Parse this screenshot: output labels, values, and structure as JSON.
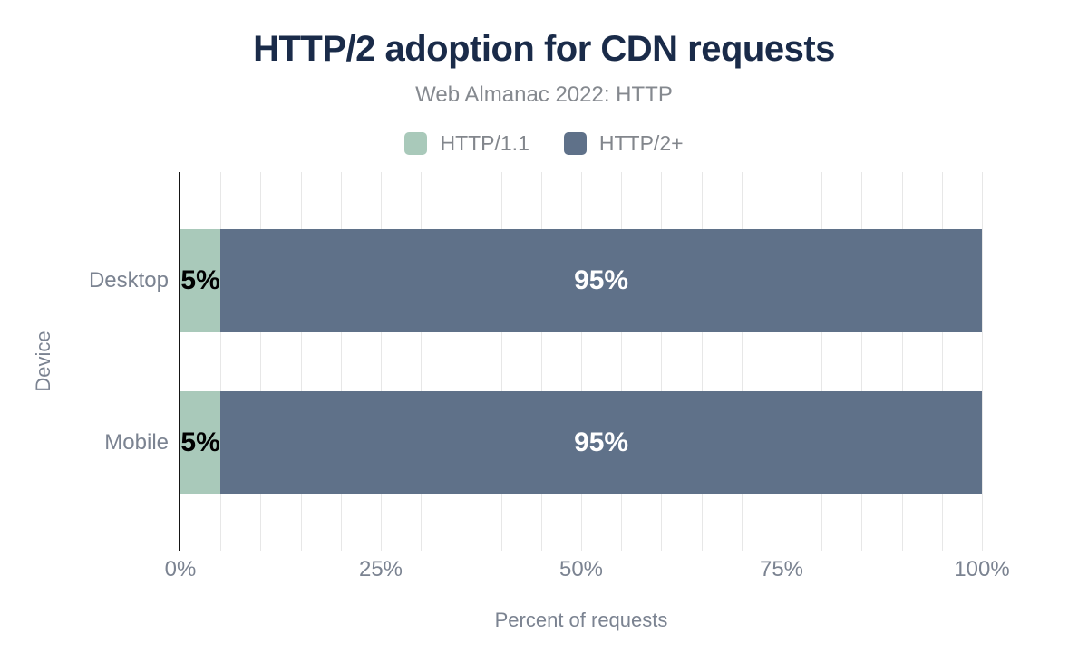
{
  "chart": {
    "title": "HTTP/2 adoption for CDN requests",
    "subtitle": "Web Almanac 2022: HTTP",
    "xlabel": "Percent of requests",
    "ylabel": "Device"
  },
  "legend": {
    "items": [
      {
        "label": "HTTP/1.1",
        "color": "#a9c9ba"
      },
      {
        "label": "HTTP/2+",
        "color": "#5f7189"
      }
    ]
  },
  "chart_data": {
    "type": "bar",
    "orientation": "horizontal",
    "stacked": true,
    "title": "HTTP/2 adoption for CDN requests",
    "subtitle": "Web Almanac 2022: HTTP",
    "xlabel": "Percent of requests",
    "ylabel": "Device",
    "categories": [
      "Desktop",
      "Mobile"
    ],
    "series": [
      {
        "name": "HTTP/1.1",
        "color": "#a9c9ba",
        "values": [
          5,
          5
        ],
        "data_labels": [
          "5%",
          "5%"
        ],
        "label_color": "#000000"
      },
      {
        "name": "HTTP/2+",
        "color": "#5f7189",
        "values": [
          95,
          95
        ],
        "data_labels": [
          "95%",
          "95%"
        ],
        "label_color": "#ffffff"
      }
    ],
    "xlim": [
      0,
      100
    ],
    "x_ticks": [
      {
        "value": 0,
        "label": "0%"
      },
      {
        "value": 25,
        "label": "25%"
      },
      {
        "value": 50,
        "label": "50%"
      },
      {
        "value": 75,
        "label": "75%"
      },
      {
        "value": 100,
        "label": "100%"
      }
    ],
    "minor_grid_step_percent": 5,
    "grid": true,
    "legend_position": "top"
  },
  "colors": {
    "title_text": "#1a2b49",
    "subtitle_text": "#85898f",
    "axis_text": "#7b8391",
    "gridline": "#e7e7e7",
    "axis_line": "#151515",
    "background": "#ffffff"
  }
}
